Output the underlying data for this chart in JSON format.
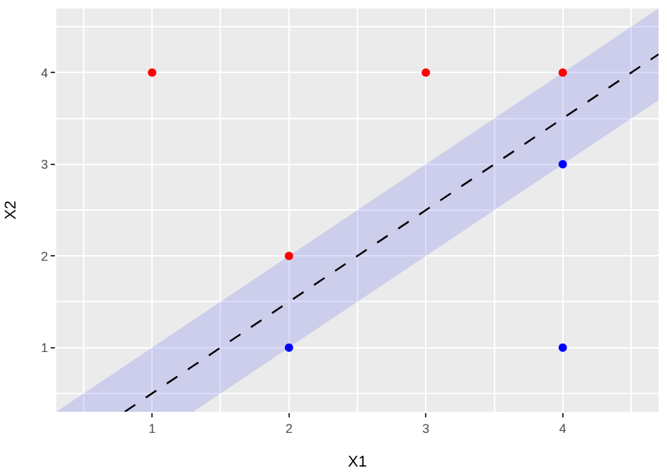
{
  "chart_data": {
    "type": "scatter",
    "xlabel": "X1",
    "ylabel": "X2",
    "xlim": [
      0.3,
      4.7
    ],
    "ylim": [
      0.3,
      4.7
    ],
    "xticks": [
      1,
      2,
      3,
      4
    ],
    "yticks": [
      1,
      2,
      3,
      4
    ],
    "grid": true,
    "marker": "circle",
    "series": [
      {
        "type": "line",
        "color": "#000000",
        "line_style": "dashed",
        "marker": "none",
        "x": [
          0.3,
          0.8,
          1.3,
          4.7
        ],
        "values": [
          null,
          0.3,
          0.8,
          4.2
        ],
        "upper": [
          0.3,
          0.8,
          1.3,
          4.7
        ],
        "lower": [
          0.3,
          0.3,
          0.3,
          3.7
        ]
      },
      {
        "color": "#ff0000",
        "x": [
          1,
          2,
          3,
          4
        ],
        "values": [
          4,
          2,
          4,
          4
        ]
      },
      {
        "color": "#0000ff",
        "x": [
          2,
          4,
          4
        ],
        "values": [
          1,
          1,
          3
        ]
      }
    ]
  }
}
